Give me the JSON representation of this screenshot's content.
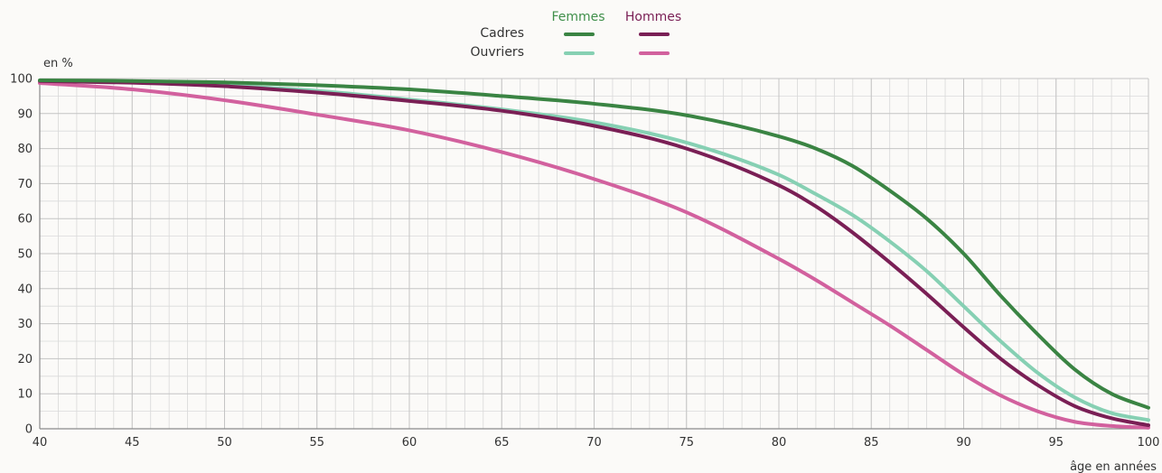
{
  "chart_data": {
    "type": "line",
    "ylabel": "en %",
    "xlabel": "âge en années",
    "xlim": [
      40,
      100
    ],
    "ylim": [
      0,
      100
    ],
    "x_ticks": [
      40,
      45,
      50,
      55,
      60,
      65,
      70,
      75,
      80,
      85,
      90,
      95,
      100
    ],
    "y_ticks": [
      0,
      10,
      20,
      30,
      40,
      50,
      60,
      70,
      80,
      90,
      100
    ],
    "grid": true,
    "legend": {
      "columns": [
        "Femmes",
        "Hommes"
      ],
      "rows": [
        "Cadres",
        "Ouvriers"
      ],
      "column_colors": {
        "Femmes": "#3f8f4a",
        "Hommes": "#7a1f55"
      },
      "placement": "top-center"
    },
    "x": [
      40,
      45,
      50,
      55,
      60,
      65,
      70,
      75,
      80,
      82,
      84,
      86,
      88,
      90,
      92,
      94,
      96,
      98,
      100
    ],
    "series": [
      {
        "name": "Femmes Cadres",
        "color": "#3a8443",
        "values": [
          99.5,
          99.3,
          98.9,
          98.1,
          96.9,
          95.0,
          92.8,
          89.5,
          83.5,
          80,
          75,
          68,
          60,
          50,
          38,
          27,
          17,
          10,
          6
        ]
      },
      {
        "name": "Hommes Cadres",
        "color": "#7a1f55",
        "values": [
          99.3,
          98.8,
          97.8,
          96.0,
          93.6,
          90.8,
          86.5,
          80.0,
          69.5,
          63.5,
          56,
          47.5,
          38.5,
          29,
          20,
          12.5,
          6.5,
          3,
          1
        ]
      },
      {
        "name": "Femmes Ouvriers",
        "color": "#86d0b3",
        "values": [
          99.4,
          99.0,
          98.0,
          96.5,
          94.0,
          91.2,
          87.5,
          81.7,
          72.5,
          67,
          61,
          53.5,
          45,
          35,
          25,
          16,
          9,
          4.5,
          2.5
        ]
      },
      {
        "name": "Hommes Ouvriers",
        "color": "#d2619e",
        "values": [
          98.7,
          96.9,
          93.8,
          89.7,
          85.2,
          79.0,
          71.3,
          61.8,
          48.5,
          42.5,
          36,
          29.5,
          22.5,
          15.5,
          9.5,
          5,
          2,
          0.8,
          0.3
        ]
      }
    ]
  }
}
